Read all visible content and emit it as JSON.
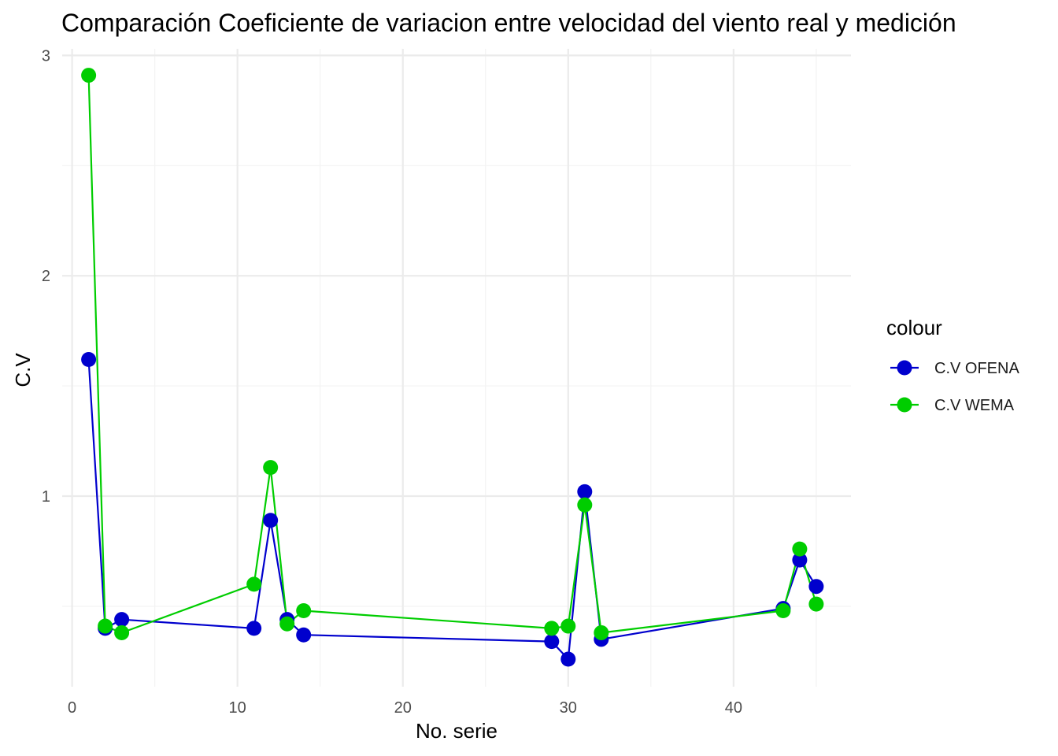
{
  "chart_data": {
    "type": "line",
    "title": "Comparación Coeficiente de variacion entre velocidad del viento real y medición",
    "xlabel": "No. serie",
    "ylabel": "C.V",
    "xlim": [
      -0.6,
      47.1
    ],
    "ylim": [
      0.135,
      3.03
    ],
    "x_major_ticks": [
      0,
      10,
      20,
      30,
      40
    ],
    "x_minor_ticks": [
      5,
      15,
      25,
      35,
      45
    ],
    "y_major_ticks": [
      1,
      2,
      3
    ],
    "y_minor_ticks": [
      0.5,
      1.5,
      2.5
    ],
    "grid": true,
    "legend": {
      "title": "colour",
      "position": "right"
    },
    "x": [
      1,
      2,
      3,
      11,
      12,
      13,
      14,
      29,
      30,
      31,
      32,
      43,
      44,
      45
    ],
    "series": [
      {
        "name": "C.V OFENA",
        "color": "#0000CD",
        "values": [
          1.62,
          0.4,
          0.44,
          0.4,
          0.89,
          0.44,
          0.37,
          0.34,
          0.26,
          1.02,
          0.35,
          0.49,
          0.71,
          0.59
        ]
      },
      {
        "name": "C.V WEMA",
        "color": "#00CD00",
        "values": [
          2.91,
          0.41,
          0.38,
          0.6,
          1.13,
          0.42,
          0.48,
          0.4,
          0.41,
          0.96,
          0.38,
          0.48,
          0.76,
          0.51
        ]
      }
    ]
  }
}
